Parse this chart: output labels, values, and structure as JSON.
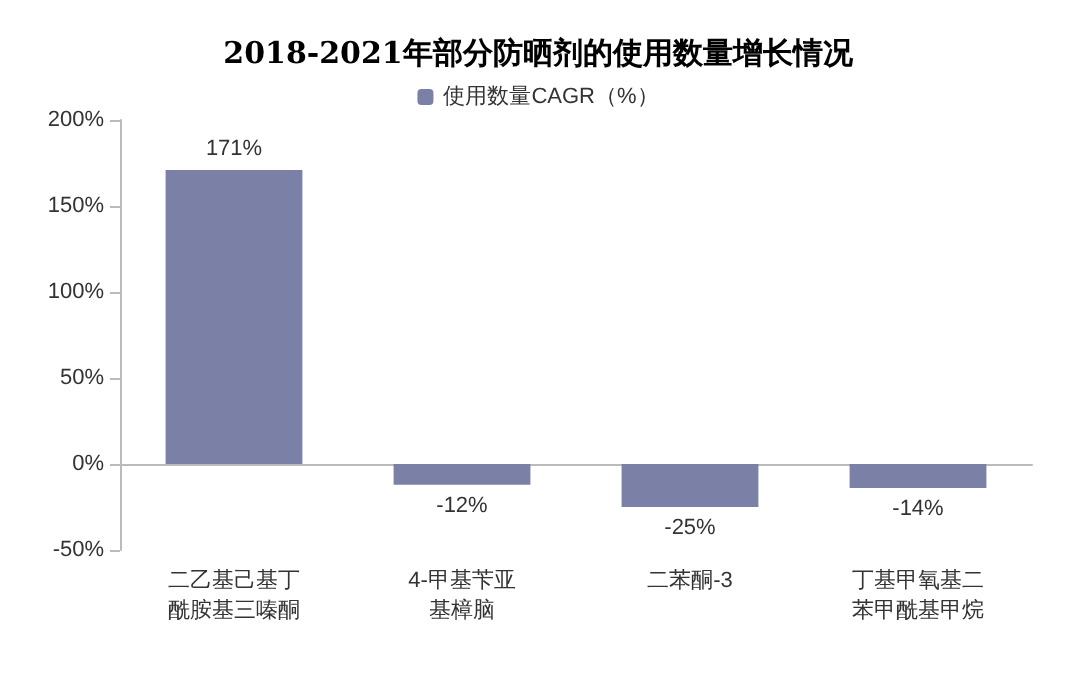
{
  "chart_data": {
    "type": "bar",
    "title": "2018-2021年部分防晒剂的使用数量增长情况",
    "categories": [
      "二乙基己基丁酰胺基三嗪酮",
      "4-甲基苄亚基樟脑",
      "二苯酮-3",
      "丁基甲氧基二苯甲酰基甲烷"
    ],
    "series": [
      {
        "name": "使用数量CAGR（%）",
        "color": "#7b80a6",
        "values": [
          171,
          -12,
          -25,
          -14
        ],
        "value_labels": [
          "171%",
          "-12%",
          "-25%",
          "-14%"
        ]
      }
    ],
    "ylim": [
      -50,
      200
    ],
    "yticks": [
      {
        "value": -50,
        "label": "-50%"
      },
      {
        "value": 0,
        "label": "0%"
      },
      {
        "value": 50,
        "label": "50%"
      },
      {
        "value": 100,
        "label": "100%"
      },
      {
        "value": 150,
        "label": "150%"
      },
      {
        "value": 200,
        "label": "200%"
      }
    ],
    "legend": "top"
  }
}
